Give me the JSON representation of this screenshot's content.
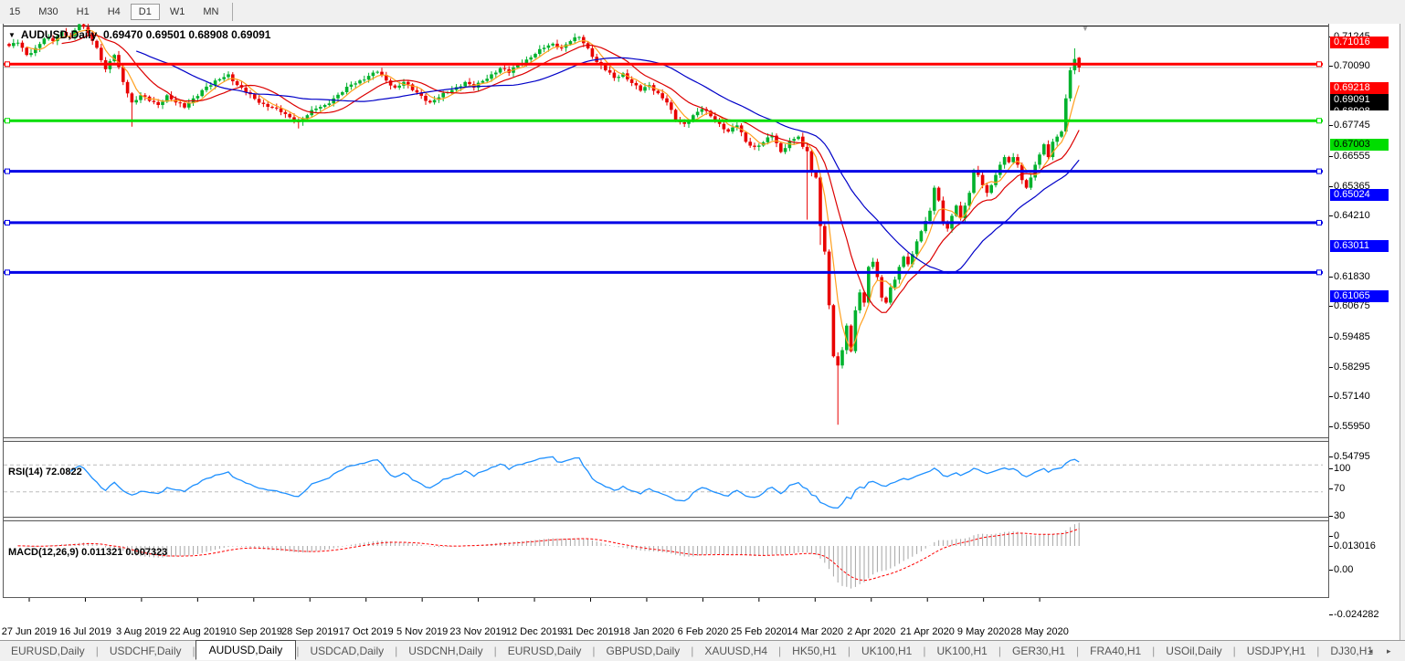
{
  "toolbar": {
    "timeframes": [
      {
        "label": "15",
        "active": false
      },
      {
        "label": "M30",
        "active": false
      },
      {
        "label": "H1",
        "active": false
      },
      {
        "label": "H4",
        "active": false
      },
      {
        "label": "D1",
        "active": true
      },
      {
        "label": "W1",
        "active": false
      },
      {
        "label": "MN",
        "active": false
      }
    ]
  },
  "chart": {
    "dropdown_icon": "▼",
    "symbol_title": "AUDUSD,Daily",
    "ohlc_text": "0.69470 0.69501 0.68908 0.69091",
    "shift_marker": "▼"
  },
  "indicators": {
    "rsi": {
      "label": "RSI(14)",
      "value": "72.0822"
    },
    "macd": {
      "label": "MACD(12,26,9)",
      "values": "0.011321 0.007323"
    }
  },
  "chart_data": {
    "type": "candlestick",
    "title": "AUDUSD,Daily",
    "last_ohlc": {
      "open": 0.6947,
      "high": 0.69501,
      "low": 0.68908,
      "close": 0.69091
    },
    "x_labels": [
      "27 Jun 2019",
      "16 Jul 2019",
      "3 Aug 2019",
      "22 Aug 2019",
      "10 Sep 2019",
      "28 Sep 2019",
      "17 Oct 2019",
      "5 Nov 2019",
      "23 Nov 2019",
      "12 Dec 2019",
      "31 Dec 2019",
      "18 Jan 2020",
      "6 Feb 2020",
      "25 Feb 2020",
      "14 Mar 2020",
      "2 Apr 2020",
      "21 Apr 2020",
      "9 May 2020",
      "28 May 2020"
    ],
    "y_axis_ticks": [
      "0.71245",
      "0.70090",
      "0.67745",
      "0.66555",
      "0.65365",
      "0.64210",
      "0.61830",
      "0.60675",
      "0.59485",
      "0.58295",
      "0.57140",
      "0.55950",
      "0.54795"
    ],
    "y_range": [
      0.546,
      0.7159
    ],
    "grid": false,
    "price_lines": [
      {
        "price": 0.71016,
        "color": "#FF0000",
        "width": 3,
        "label": "0.71016",
        "label_bg": "#FF0000",
        "label_fg": "#FFFFFF"
      },
      {
        "price": 0.69218,
        "color": "#FF0000",
        "width": 3,
        "label": "0.69218",
        "label_bg": "#FF0000",
        "label_fg": "#FFFFFF"
      },
      {
        "price": 0.67003,
        "color": "#00DD00",
        "width": 3,
        "label": "0.67003",
        "label_bg": "#00DD00",
        "label_fg": "#000000"
      },
      {
        "price": 0.65024,
        "color": "#0000E6",
        "width": 3,
        "label": "0.65024",
        "label_bg": "#0000FF",
        "label_fg": "#FFFFFF"
      },
      {
        "price": 0.63011,
        "color": "#0000E6",
        "width": 3,
        "label": "0.63011",
        "label_bg": "#0000FF",
        "label_fg": "#FFFFFF"
      },
      {
        "price": 0.61065,
        "color": "#0000E6",
        "width": 3,
        "label": "0.61065",
        "label_bg": "#0000FF",
        "label_fg": "#FFFFFF"
      }
    ],
    "current_price_line": {
      "price": 0.69091,
      "color": "#BBBBBB",
      "width": 1,
      "label": "0.69091",
      "label_bg": "#000000",
      "label_fg": "#FFFFFF"
    },
    "partial_badge": {
      "label": "0.68908",
      "label_bg": "#000000",
      "label_fg": "#FFFFFF"
    },
    "moving_averages": [
      {
        "period": 5,
        "color": "#FFA01E"
      },
      {
        "period": 13,
        "color": "#DC0000"
      },
      {
        "period": 30,
        "color": "#0000C8"
      }
    ],
    "candles": {
      "count": 245,
      "up_color": "#00B22D",
      "down_color": "#E80000",
      "close_anchors": [
        [
          0,
          0.6993
        ],
        [
          2,
          0.7006
        ],
        [
          4,
          0.6958
        ],
        [
          6,
          0.6985
        ],
        [
          8,
          0.7022
        ],
        [
          10,
          0.7012
        ],
        [
          12,
          0.7048
        ],
        [
          14,
          0.7032
        ],
        [
          16,
          0.7078
        ],
        [
          18,
          0.7044
        ],
        [
          20,
          0.6986
        ],
        [
          22,
          0.6902
        ],
        [
          24,
          0.6958
        ],
        [
          26,
          0.6852
        ],
        [
          28,
          0.6772
        ],
        [
          30,
          0.68
        ],
        [
          32,
          0.6778
        ],
        [
          34,
          0.6762
        ],
        [
          36,
          0.68
        ],
        [
          38,
          0.6772
        ],
        [
          40,
          0.6752
        ],
        [
          42,
          0.6788
        ],
        [
          44,
          0.682
        ],
        [
          47,
          0.6858
        ],
        [
          50,
          0.6882
        ],
        [
          52,
          0.684
        ],
        [
          54,
          0.6812
        ],
        [
          56,
          0.6786
        ],
        [
          58,
          0.6766
        ],
        [
          60,
          0.6752
        ],
        [
          62,
          0.6734
        ],
        [
          64,
          0.6714
        ],
        [
          66,
          0.6696
        ],
        [
          68,
          0.6722
        ],
        [
          70,
          0.6748
        ],
        [
          72,
          0.6762
        ],
        [
          74,
          0.6788
        ],
        [
          76,
          0.6812
        ],
        [
          78,
          0.6842
        ],
        [
          80,
          0.6858
        ],
        [
          82,
          0.6876
        ],
        [
          84,
          0.6892
        ],
        [
          86,
          0.6858
        ],
        [
          88,
          0.683
        ],
        [
          90,
          0.6852
        ],
        [
          92,
          0.682
        ],
        [
          94,
          0.6798
        ],
        [
          96,
          0.6772
        ],
        [
          98,
          0.6792
        ],
        [
          100,
          0.6812
        ],
        [
          102,
          0.6832
        ],
        [
          104,
          0.6852
        ],
        [
          106,
          0.683
        ],
        [
          108,
          0.6856
        ],
        [
          110,
          0.6882
        ],
        [
          112,
          0.6906
        ],
        [
          114,
          0.6888
        ],
        [
          116,
          0.6922
        ],
        [
          118,
          0.694
        ],
        [
          120,
          0.6962
        ],
        [
          122,
          0.6986
        ],
        [
          124,
          0.7002
        ],
        [
          126,
          0.6986
        ],
        [
          128,
          0.7012
        ],
        [
          130,
          0.7028
        ],
        [
          132,
          0.6984
        ],
        [
          134,
          0.693
        ],
        [
          136,
          0.6898
        ],
        [
          138,
          0.6868
        ],
        [
          140,
          0.6886
        ],
        [
          142,
          0.6848
        ],
        [
          144,
          0.6818
        ],
        [
          146,
          0.684
        ],
        [
          148,
          0.6808
        ],
        [
          150,
          0.6772
        ],
        [
          152,
          0.67
        ],
        [
          154,
          0.6688
        ],
        [
          156,
          0.6722
        ],
        [
          158,
          0.6746
        ],
        [
          160,
          0.6718
        ],
        [
          162,
          0.6688
        ],
        [
          164,
          0.6658
        ],
        [
          166,
          0.6682
        ],
        [
          168,
          0.6618
        ],
        [
          170,
          0.6598
        ],
        [
          172,
          0.6616
        ],
        [
          174,
          0.6642
        ],
        [
          176,
          0.6578
        ],
        [
          178,
          0.6622
        ],
        [
          180,
          0.6638
        ],
        [
          181,
          0.6598
        ],
        [
          182,
          0.6581
        ],
        [
          183,
          0.6498
        ],
        [
          184,
          0.6478
        ],
        [
          185,
          0.6288
        ],
        [
          186,
          0.6188
        ],
        [
          187,
          0.5978
        ],
        [
          188,
          0.5778
        ],
        [
          189,
          0.5742
        ],
        [
          190,
          0.5802
        ],
        [
          191,
          0.5898
        ],
        [
          192,
          0.5798
        ],
        [
          193,
          0.5958
        ],
        [
          194,
          0.6028
        ],
        [
          195,
          0.5988
        ],
        [
          196,
          0.6128
        ],
        [
          197,
          0.6148
        ],
        [
          198,
          0.6088
        ],
        [
          199,
          0.6008
        ],
        [
          200,
          0.5988
        ],
        [
          201,
          0.6048
        ],
        [
          202,
          0.6078
        ],
        [
          203,
          0.6128
        ],
        [
          204,
          0.6168
        ],
        [
          205,
          0.6138
        ],
        [
          206,
          0.6178
        ],
        [
          207,
          0.6228
        ],
        [
          208,
          0.6268
        ],
        [
          209,
          0.6308
        ],
        [
          210,
          0.6348
        ],
        [
          211,
          0.6438
        ],
        [
          212,
          0.6388
        ],
        [
          213,
          0.6298
        ],
        [
          214,
          0.6278
        ],
        [
          215,
          0.6328
        ],
        [
          216,
          0.6368
        ],
        [
          217,
          0.6318
        ],
        [
          218,
          0.6368
        ],
        [
          219,
          0.6418
        ],
        [
          220,
          0.6508
        ],
        [
          221,
          0.6488
        ],
        [
          222,
          0.6448
        ],
        [
          223,
          0.6418
        ],
        [
          224,
          0.6448
        ],
        [
          225,
          0.6488
        ],
        [
          226,
          0.6528
        ],
        [
          227,
          0.6558
        ],
        [
          228,
          0.6538
        ],
        [
          229,
          0.6558
        ],
        [
          230,
          0.6528
        ],
        [
          231,
          0.6468
        ],
        [
          232,
          0.6438
        ],
        [
          233,
          0.6478
        ],
        [
          234,
          0.6528
        ],
        [
          235,
          0.6568
        ],
        [
          236,
          0.6608
        ],
        [
          237,
          0.6558
        ],
        [
          238,
          0.6618
        ],
        [
          239,
          0.6638
        ],
        [
          240,
          0.6658
        ],
        [
          241,
          0.6788
        ],
        [
          242,
          0.6898
        ],
        [
          243,
          0.6942
        ],
        [
          244,
          0.6909
        ]
      ],
      "low_overrides": {
        "28": 0.6677,
        "66": 0.667,
        "182": 0.6313,
        "185": 0.6214,
        "189": 0.551,
        "201": 0.598,
        "244": 0.68908
      },
      "high_overrides": {
        "16": 0.708,
        "130": 0.7032,
        "243": 0.6984,
        "244": 0.69501
      },
      "open_overrides": {
        "244": 0.6947
      }
    },
    "rsi_panel": {
      "period": 14,
      "color": "#1E90FF",
      "last_value": 72.0822,
      "axis_ticks": [
        "100",
        "70",
        "30",
        "0"
      ],
      "axis_values": [
        100,
        70,
        30,
        0
      ],
      "level_lines": [
        70,
        30
      ]
    },
    "macd_panel": {
      "fast": 12,
      "slow": 26,
      "signal": 9,
      "histogram_color": "#A6A6A6",
      "signal_color": "#FF0000",
      "axis_ticks": [
        "0.013016",
        "0.00",
        "-0.024282"
      ],
      "axis_values": [
        0.013016,
        0.0,
        -0.024282
      ],
      "last_main": 0.011321,
      "last_signal": 0.007323
    }
  },
  "tabs": {
    "items": [
      {
        "label": "EURUSD,Daily",
        "active": false
      },
      {
        "label": "USDCHF,Daily",
        "active": false
      },
      {
        "label": "AUDUSD,Daily",
        "active": true
      },
      {
        "label": "USDCAD,Daily",
        "active": false
      },
      {
        "label": "USDCNH,Daily",
        "active": false
      },
      {
        "label": "EURUSD,Daily",
        "active": false
      },
      {
        "label": "GBPUSD,Daily",
        "active": false
      },
      {
        "label": "XAUUSD,H4",
        "active": false
      },
      {
        "label": "HK50,H1",
        "active": false
      },
      {
        "label": "UK100,H1",
        "active": false
      },
      {
        "label": "UK100,H1",
        "active": false
      },
      {
        "label": "GER30,H1",
        "active": false
      },
      {
        "label": "FRA40,H1",
        "active": false
      },
      {
        "label": "USOil,Daily",
        "active": false
      },
      {
        "label": "USDJPY,H1",
        "active": false
      },
      {
        "label": "DJ30,H1",
        "active": false
      }
    ],
    "nav_left": "◂",
    "nav_right": "▸"
  }
}
